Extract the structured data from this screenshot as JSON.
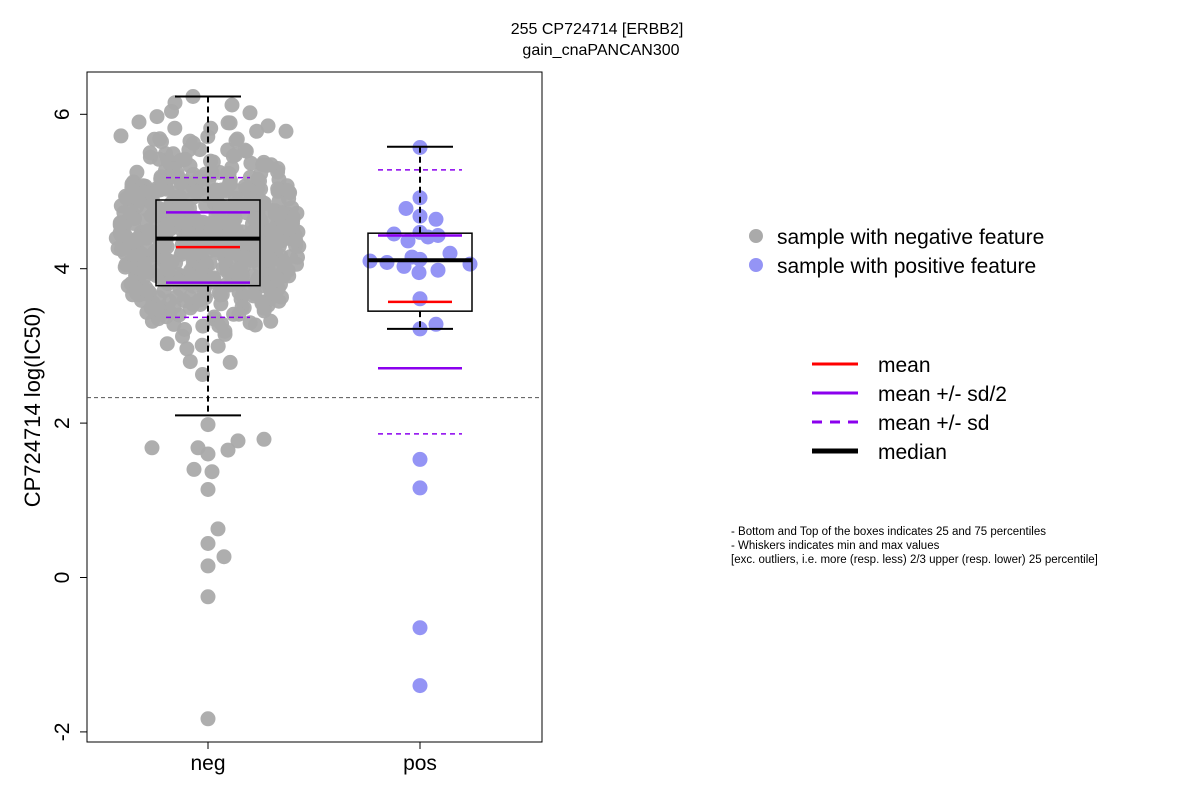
{
  "chart_data": {
    "type": "scatter",
    "title": "255 CP724714 [ERBB2]",
    "subtitle": "gain_cnaPANCAN300",
    "ylabel": "CP724714 log(IC50)",
    "xlabel": "",
    "categories": [
      "neg",
      "pos"
    ],
    "ylim": [
      -2.2,
      6.5
    ],
    "yticks": [
      -2,
      0,
      2,
      4,
      6
    ],
    "grid": false,
    "threshold_line": 2.33,
    "colors": {
      "neg_points": "#aaaaaa",
      "pos_points": "#9494f5",
      "mean": "#ff0000",
      "sd": "#8b00ee",
      "median": "#000000",
      "threshold": "#555555"
    },
    "boxplots": [
      {
        "group": "neg",
        "whisker_min": 2.1,
        "q1": 3.78,
        "median": 4.39,
        "q3": 4.89,
        "whisker_max": 6.23,
        "mean": 4.28,
        "mean_minus_half_sd": 3.82,
        "mean_plus_half_sd": 4.73,
        "mean_minus_sd": 3.37,
        "mean_plus_sd": 5.18
      },
      {
        "group": "pos",
        "whisker_min": 3.22,
        "q1": 3.45,
        "median": 4.11,
        "q3": 4.46,
        "whisker_max": 5.58,
        "mean": 3.57,
        "mean_minus_half_sd": 2.71,
        "mean_plus_half_sd": 4.43,
        "mean_minus_sd": 1.86,
        "mean_plus_sd": 5.28
      }
    ],
    "series": [
      {
        "group": "neg",
        "outliers": [
          1.98,
          1.77,
          1.79,
          1.68,
          1.68,
          1.65,
          1.6,
          1.4,
          1.37,
          1.14,
          0.63,
          0.44,
          0.27,
          0.15,
          -0.25,
          -1.83
        ],
        "bulk_range": [
          2.1,
          6.23
        ]
      },
      {
        "group": "pos",
        "values": [
          5.57,
          4.92,
          4.78,
          4.68,
          4.64,
          4.45,
          4.47,
          4.43,
          4.41,
          4.36,
          4.2,
          4.15,
          4.12,
          4.1,
          4.08,
          4.06,
          4.03,
          3.98,
          3.95,
          3.61,
          3.28,
          3.22,
          1.53,
          1.16,
          -0.65,
          -1.4
        ]
      }
    ],
    "legend": {
      "position": "right",
      "points": [
        {
          "label": "sample with negative feature",
          "color": "#aaaaaa"
        },
        {
          "label": "sample with positive feature",
          "color": "#9494f5"
        }
      ],
      "lines": [
        {
          "label": "mean",
          "color": "#ff0000",
          "style": "solid"
        },
        {
          "label": "mean +/- sd/2",
          "color": "#8b00ee",
          "style": "solid"
        },
        {
          "label": "mean +/- sd",
          "color": "#8b00ee",
          "style": "dashed"
        },
        {
          "label": "median",
          "color": "#000000",
          "style": "thick"
        }
      ]
    },
    "notes": [
      "- Bottom and Top of the boxes indicates 25 and 75 percentiles",
      "- Whiskers indicates min and max values",
      "[exc. outliers, i.e. more (resp. less) 2/3 upper (resp. lower) 25 percentile]"
    ]
  }
}
